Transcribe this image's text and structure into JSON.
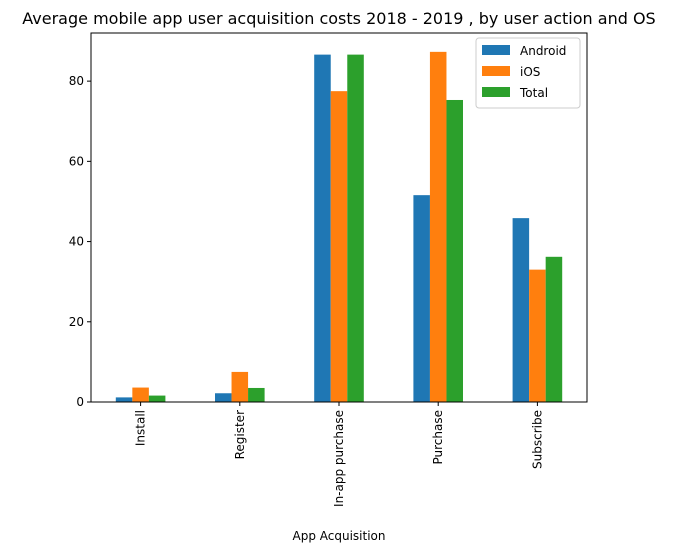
{
  "chart_data": {
    "type": "bar",
    "title": "Average mobile app user acquisition costs 2018 - 2019 , by user action and OS",
    "xlabel": "App Acquisition",
    "ylabel": "",
    "categories": [
      "Install",
      "Register",
      "In-app purchase",
      "Purchase",
      "Subscribe"
    ],
    "series": [
      {
        "name": "Android",
        "color": "#1f77b4",
        "values": [
          1.15,
          2.18,
          86.61,
          51.57,
          45.84
        ]
      },
      {
        "name": "iOS",
        "color": "#ff7f0e",
        "values": [
          3.6,
          7.5,
          77.5,
          87.3,
          33.0
        ]
      },
      {
        "name": "Total",
        "color": "#2ca02c",
        "values": [
          1.6,
          3.5,
          86.61,
          75.3,
          36.2
        ]
      }
    ],
    "ylim": [
      0,
      92
    ],
    "yticks": [
      0,
      20,
      40,
      60,
      80
    ],
    "grid": false,
    "legend_position": "top-right"
  }
}
